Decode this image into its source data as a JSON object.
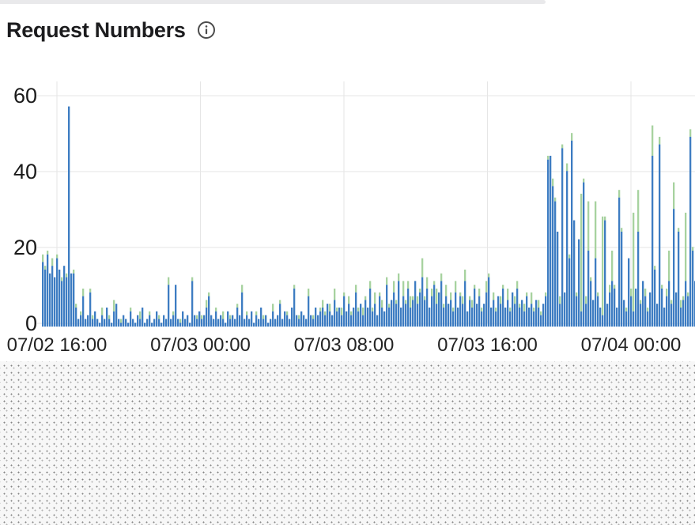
{
  "header": {
    "title": "Request Numbers"
  },
  "icons": {
    "info": "circle-i"
  },
  "colors": {
    "bar_blue": "#3d7cc2",
    "bar_green": "#a7d29f",
    "grid": "#e6e6e6",
    "axis_text": "#1b1b1b",
    "title_text": "#1c1c1e",
    "icon": "#4c4c4c",
    "top_strip": "#e9e9eb",
    "pattern_bg": "#f7f7f7",
    "pattern_dot": "#828282"
  },
  "chart_data": {
    "type": "bar",
    "stacked": true,
    "title": "Request Numbers",
    "xlabel": "",
    "ylabel": "",
    "grid": true,
    "legend": "none",
    "ylim": [
      0,
      60
    ],
    "y_ticks": [
      0,
      20,
      40,
      60
    ],
    "x_ticks": [
      "07/02 16:00",
      "07/03 00:00",
      "07/03 08:00",
      "07/03 16:00",
      "07/04 00:00"
    ],
    "x_range_note": "bars are ~8-minute buckets from ~07/02 15:00 to ~07/04 03:00",
    "series": [
      {
        "name": "blue",
        "color": "#3d7cc2"
      },
      {
        "name": "green",
        "color": "#a7d29f"
      }
    ],
    "bars": [
      [
        17,
        2
      ],
      [
        15,
        1
      ],
      [
        19,
        1
      ],
      [
        14,
        0
      ],
      [
        16,
        2
      ],
      [
        13,
        0
      ],
      [
        18,
        1
      ],
      [
        15,
        0
      ],
      [
        12,
        1
      ],
      [
        16,
        0
      ],
      [
        13,
        1
      ],
      [
        58,
        0
      ],
      [
        14,
        0
      ],
      [
        14,
        1
      ],
      [
        5,
        1
      ],
      [
        2,
        0
      ],
      [
        3,
        1
      ],
      [
        8,
        2
      ],
      [
        2,
        0
      ],
      [
        3,
        0
      ],
      [
        9,
        1
      ],
      [
        2,
        1
      ],
      [
        4,
        0
      ],
      [
        2,
        0
      ],
      [
        1,
        0
      ],
      [
        3,
        2
      ],
      [
        2,
        0
      ],
      [
        5,
        0
      ],
      [
        2,
        1
      ],
      [
        1,
        0
      ],
      [
        4,
        3
      ],
      [
        6,
        0
      ],
      [
        2,
        0
      ],
      [
        1,
        1
      ],
      [
        3,
        0
      ],
      [
        2,
        0
      ],
      [
        1,
        0
      ],
      [
        4,
        1
      ],
      [
        2,
        0
      ],
      [
        1,
        0
      ],
      [
        3,
        0
      ],
      [
        2,
        2
      ],
      [
        5,
        0
      ],
      [
        1,
        0
      ],
      [
        2,
        0
      ],
      [
        3,
        1
      ],
      [
        1,
        0
      ],
      [
        2,
        0
      ],
      [
        4,
        0
      ],
      [
        2,
        1
      ],
      [
        1,
        0
      ],
      [
        3,
        0
      ],
      [
        2,
        0
      ],
      [
        11,
        2
      ],
      [
        2,
        0
      ],
      [
        3,
        1
      ],
      [
        11,
        0
      ],
      [
        2,
        0
      ],
      [
        1,
        1
      ],
      [
        4,
        0
      ],
      [
        2,
        0
      ],
      [
        3,
        0
      ],
      [
        1,
        0
      ],
      [
        12,
        1
      ],
      [
        3,
        0
      ],
      [
        2,
        1
      ],
      [
        4,
        0
      ],
      [
        2,
        1
      ],
      [
        3,
        0
      ],
      [
        5,
        2
      ],
      [
        8,
        1
      ],
      [
        3,
        0
      ],
      [
        2,
        0
      ],
      [
        4,
        1
      ],
      [
        2,
        0
      ],
      [
        3,
        0
      ],
      [
        2,
        2
      ],
      [
        1,
        0
      ],
      [
        4,
        0
      ],
      [
        2,
        1
      ],
      [
        3,
        0
      ],
      [
        2,
        0
      ],
      [
        5,
        1
      ],
      [
        3,
        0
      ],
      [
        9,
        2
      ],
      [
        2,
        0
      ],
      [
        3,
        1
      ],
      [
        2,
        0
      ],
      [
        4,
        0
      ],
      [
        1,
        0
      ],
      [
        3,
        1
      ],
      [
        2,
        0
      ],
      [
        5,
        0
      ],
      [
        2,
        1
      ],
      [
        3,
        0
      ],
      [
        1,
        0
      ],
      [
        2,
        0
      ],
      [
        4,
        2
      ],
      [
        2,
        0
      ],
      [
        3,
        0
      ],
      [
        6,
        1
      ],
      [
        2,
        0
      ],
      [
        4,
        0
      ],
      [
        3,
        1
      ],
      [
        2,
        0
      ],
      [
        5,
        0
      ],
      [
        10,
        1
      ],
      [
        3,
        0
      ],
      [
        2,
        1
      ],
      [
        4,
        0
      ],
      [
        3,
        0
      ],
      [
        2,
        0
      ],
      [
        8,
        2
      ],
      [
        3,
        0
      ],
      [
        2,
        1
      ],
      [
        5,
        0
      ],
      [
        3,
        0
      ],
      [
        4,
        1
      ],
      [
        5,
        2
      ],
      [
        3,
        1
      ],
      [
        6,
        0
      ],
      [
        4,
        2
      ],
      [
        3,
        0
      ],
      [
        7,
        3
      ],
      [
        4,
        1
      ],
      [
        5,
        0
      ],
      [
        3,
        2
      ],
      [
        8,
        1
      ],
      [
        4,
        0
      ],
      [
        6,
        2
      ],
      [
        3,
        1
      ],
      [
        5,
        0
      ],
      [
        9,
        2
      ],
      [
        4,
        1
      ],
      [
        6,
        0
      ],
      [
        3,
        2
      ],
      [
        7,
        1
      ],
      [
        5,
        0
      ],
      [
        10,
        2
      ],
      [
        4,
        1
      ],
      [
        6,
        3
      ],
      [
        3,
        0
      ],
      [
        8,
        1
      ],
      [
        5,
        2
      ],
      [
        4,
        0
      ],
      [
        11,
        2
      ],
      [
        5,
        1
      ],
      [
        7,
        0
      ],
      [
        9,
        3
      ],
      [
        6,
        1
      ],
      [
        12,
        2
      ],
      [
        5,
        0
      ],
      [
        8,
        4
      ],
      [
        6,
        1
      ],
      [
        10,
        2
      ],
      [
        5,
        3
      ],
      [
        7,
        1
      ],
      [
        12,
        0
      ],
      [
        6,
        2
      ],
      [
        9,
        1
      ],
      [
        13,
        5
      ],
      [
        7,
        1
      ],
      [
        10,
        3
      ],
      [
        5,
        0
      ],
      [
        8,
        2
      ],
      [
        11,
        1
      ],
      [
        6,
        4
      ],
      [
        9,
        0
      ],
      [
        12,
        2
      ],
      [
        5,
        1
      ],
      [
        8,
        3
      ],
      [
        6,
        0
      ],
      [
        7,
        2
      ],
      [
        4,
        1
      ],
      [
        9,
        3
      ],
      [
        5,
        0
      ],
      [
        8,
        1
      ],
      [
        6,
        2
      ],
      [
        12,
        3
      ],
      [
        4,
        0
      ],
      [
        7,
        1
      ],
      [
        5,
        2
      ],
      [
        10,
        1
      ],
      [
        6,
        0
      ],
      [
        8,
        2
      ],
      [
        4,
        1
      ],
      [
        6,
        0
      ],
      [
        9,
        3
      ],
      [
        13,
        1
      ],
      [
        5,
        0
      ],
      [
        7,
        2
      ],
      [
        4,
        1
      ],
      [
        8,
        0
      ],
      [
        6,
        2
      ],
      [
        10,
        1
      ],
      [
        5,
        0
      ],
      [
        7,
        3
      ],
      [
        4,
        1
      ],
      [
        9,
        0
      ],
      [
        6,
        2
      ],
      [
        10,
        2
      ],
      [
        5,
        1
      ],
      [
        7,
        0
      ],
      [
        4,
        2
      ],
      [
        8,
        1
      ],
      [
        5,
        0
      ],
      [
        6,
        3
      ],
      [
        4,
        1
      ],
      [
        7,
        0
      ],
      [
        5,
        2
      ],
      [
        3,
        1
      ],
      [
        6,
        0
      ],
      [
        8,
        1
      ],
      [
        44,
        1
      ],
      [
        45,
        0
      ],
      [
        37,
        2
      ],
      [
        33,
        1
      ],
      [
        25,
        0
      ],
      [
        6,
        2
      ],
      [
        47,
        1
      ],
      [
        9,
        0
      ],
      [
        41,
        2
      ],
      [
        18,
        1
      ],
      [
        49,
        2
      ],
      [
        28,
        0
      ],
      [
        8,
        1
      ],
      [
        23,
        0
      ],
      [
        4,
        31
      ],
      [
        38,
        1
      ],
      [
        6,
        2
      ],
      [
        20,
        13
      ],
      [
        12,
        1
      ],
      [
        7,
        0
      ],
      [
        18,
        15
      ],
      [
        8,
        1
      ],
      [
        5,
        0
      ],
      [
        3,
        26
      ],
      [
        28,
        1
      ],
      [
        6,
        0
      ],
      [
        9,
        2
      ],
      [
        12,
        8
      ],
      [
        10,
        1
      ],
      [
        5,
        0
      ],
      [
        34,
        2
      ],
      [
        25,
        1
      ],
      [
        7,
        0
      ],
      [
        4,
        1
      ],
      [
        18,
        0
      ],
      [
        8,
        2
      ],
      [
        4,
        26
      ],
      [
        10,
        0
      ],
      [
        25,
        11
      ],
      [
        6,
        1
      ],
      [
        12,
        0
      ],
      [
        8,
        2
      ],
      [
        4,
        1
      ],
      [
        9,
        0
      ],
      [
        45,
        8
      ],
      [
        15,
        1
      ],
      [
        6,
        0
      ],
      [
        48,
        2
      ],
      [
        10,
        1
      ],
      [
        5,
        0
      ],
      [
        8,
        2
      ],
      [
        12,
        8
      ],
      [
        6,
        1
      ],
      [
        31,
        7
      ],
      [
        9,
        0
      ],
      [
        25,
        1
      ],
      [
        5,
        2
      ],
      [
        7,
        1
      ],
      [
        12,
        18
      ],
      [
        8,
        1
      ],
      [
        50,
        2
      ],
      [
        20,
        1
      ],
      [
        12,
        0
      ]
    ]
  }
}
